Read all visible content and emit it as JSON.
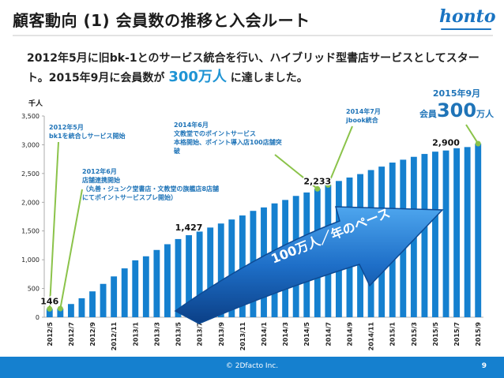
{
  "title": "顧客動向 (1) 会員数の推移と入会ルート",
  "logo": "honto",
  "description": {
    "part1": "2012年5月に旧bk-1とのサービス統合を行い、ハイブリッド型書店サービスとしてスタート。2015年9月に会員数が ",
    "highlight": "300万人",
    "part2": " に達しました。"
  },
  "unit_label": "千人",
  "annotations": {
    "a1": [
      "2012年5月",
      "bk1を統合しサービス開始"
    ],
    "a2": [
      "2012年6月",
      "店舗連携開始",
      "（丸善・ジュンク堂書店・文教堂の旗艦店8店舗",
      "にてポイントサービスプレ開始）"
    ],
    "a3": [
      "2014年6月",
      "文教堂でのポイントサービス",
      "本格開始、ポイント導入店100店舗突",
      "破"
    ],
    "a4": [
      "2014年7月",
      "jbook統合"
    ],
    "a5_line1": "2015年9月",
    "a5_pre": "会員",
    "a5_num": "300",
    "a5_post": "万人"
  },
  "arrow_text": "100万人／年のペース",
  "footer": {
    "copyright": "© 2Dfacto Inc.",
    "page": "9"
  },
  "colors": {
    "bar": "#1580cf",
    "accent_green": "#8bc34a",
    "arrow_blue": "#1e6fc8",
    "footer": "#1580cf"
  },
  "chart_data": {
    "type": "bar",
    "xlabel": "",
    "ylabel": "千人",
    "ylim": [
      0,
      3500
    ],
    "yticks": [
      0,
      500,
      1000,
      1500,
      2000,
      2500,
      3000,
      3500
    ],
    "ytick_labels": [
      "0",
      "500",
      "1,000",
      "1,500",
      "2,000",
      "2,500",
      "3,000",
      "3,500"
    ],
    "categories": [
      "2012/5",
      "2012/6",
      "2012/7",
      "2012/8",
      "2012/9",
      "2012/10",
      "2012/11",
      "2012/12",
      "2013/1",
      "2013/2",
      "2013/3",
      "2013/4",
      "2013/5",
      "2013/6",
      "2013/7",
      "2013/8",
      "2013/9",
      "2013/10",
      "2013/11",
      "2013/12",
      "2014/1",
      "2014/2",
      "2014/3",
      "2014/4",
      "2014/5",
      "2014/6",
      "2014/7",
      "2014/8",
      "2014/9",
      "2014/10",
      "2014/11",
      "2014/12",
      "2015/1",
      "2015/2",
      "2015/3",
      "2015/4",
      "2015/5",
      "2015/6",
      "2015/7",
      "2015/8",
      "2015/9"
    ],
    "tick_labels": [
      "2012/5",
      "2012/7",
      "2012/9",
      "2012/11",
      "2013/1",
      "2013/3",
      "2013/5",
      "2013/7",
      "2013/9",
      "2013/11",
      "2014/1",
      "2014/3",
      "2014/5",
      "2014/7",
      "2014/9",
      "2014/11",
      "2015/1",
      "2015/3",
      "2015/5",
      "2015/7",
      "2015/9"
    ],
    "values": [
      146,
      150,
      230,
      330,
      450,
      580,
      710,
      850,
      990,
      1060,
      1170,
      1270,
      1360,
      1427,
      1490,
      1560,
      1630,
      1700,
      1770,
      1850,
      1910,
      1980,
      2040,
      2110,
      2170,
      2233,
      2300,
      2370,
      2430,
      2490,
      2560,
      2620,
      2690,
      2740,
      2790,
      2840,
      2880,
      2900,
      2940,
      2960,
      3020
    ],
    "data_labels": [
      {
        "index": 0,
        "text": "146"
      },
      {
        "index": 13,
        "text": "1,427"
      },
      {
        "index": 25,
        "text": "2,233"
      },
      {
        "index": 37,
        "text": "2,900"
      }
    ]
  }
}
